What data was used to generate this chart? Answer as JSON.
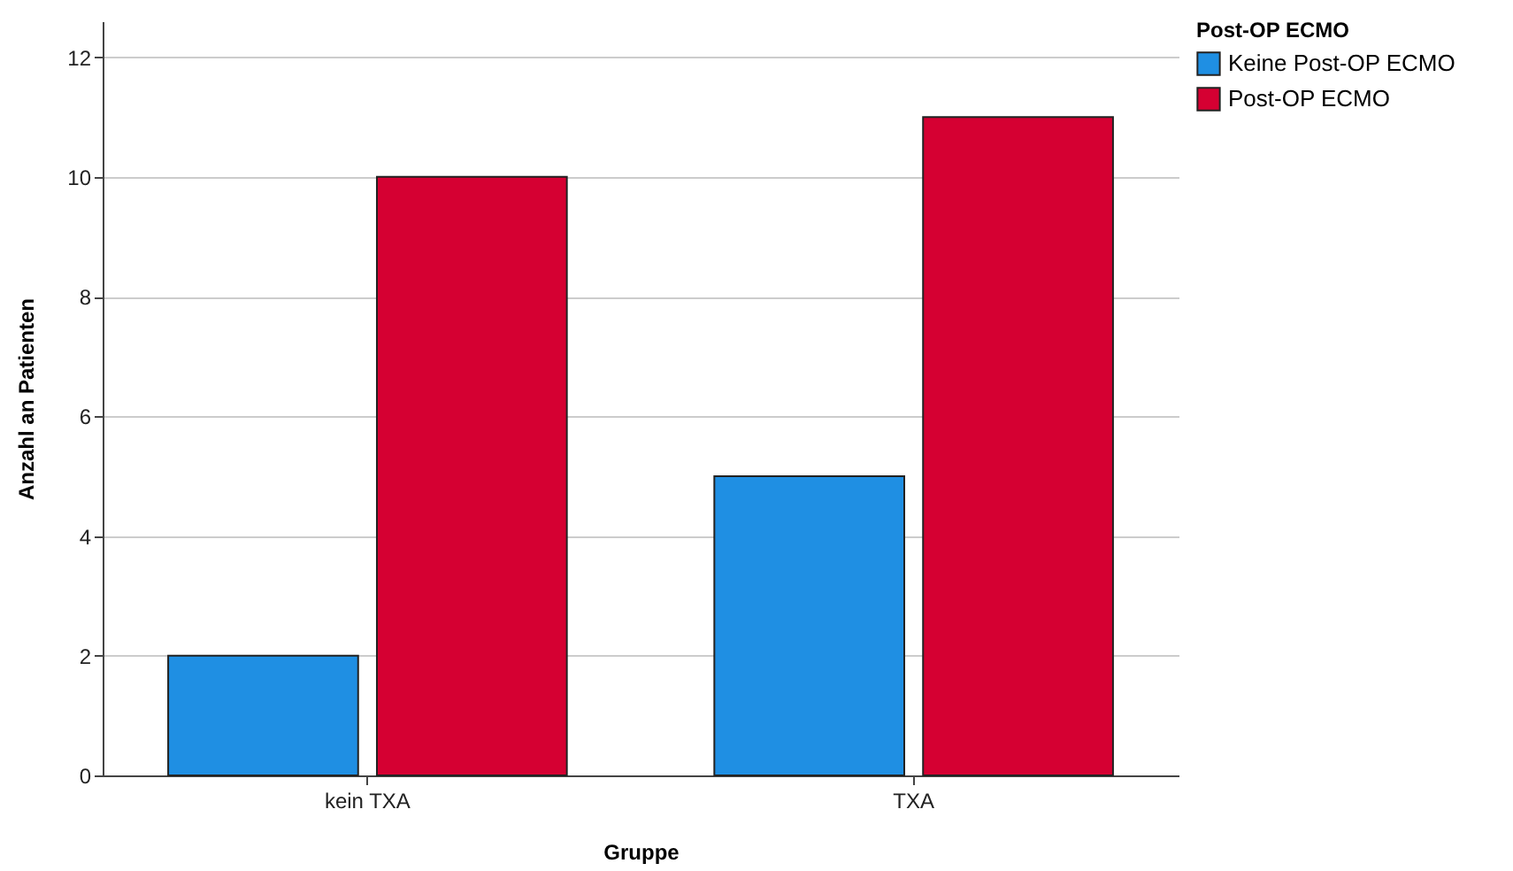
{
  "chart_data": {
    "type": "bar",
    "xlabel": "Gruppe",
    "ylabel": "Anzahl an Patienten",
    "legend_title": "Post-OP ECMO",
    "categories": [
      "kein TXA",
      "TXA"
    ],
    "series": [
      {
        "name": "Keine Post-OP ECMO",
        "color": "#1f8fe3",
        "values": [
          2,
          5
        ]
      },
      {
        "name": "Post-OP ECMO",
        "color": "#d50032",
        "values": [
          10,
          11
        ]
      }
    ],
    "ylim": [
      0,
      12.6
    ],
    "yticks": [
      0,
      2,
      4,
      6,
      8,
      10,
      12
    ],
    "grid": "y",
    "legend": "top right"
  }
}
